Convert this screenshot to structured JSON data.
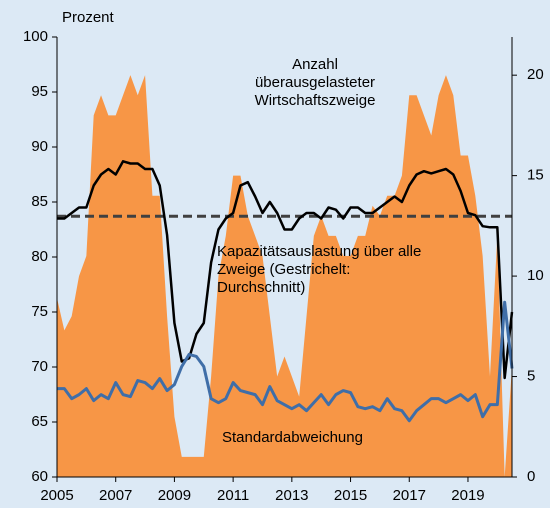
{
  "chart_data": {
    "type": "line",
    "y_label": "Prozent",
    "x": [
      2005,
      2005.25,
      2005.5,
      2005.75,
      2006,
      2006.25,
      2006.5,
      2006.75,
      2007,
      2007.25,
      2007.5,
      2007.75,
      2008,
      2008.25,
      2008.5,
      2008.75,
      2009,
      2009.25,
      2009.5,
      2009.75,
      2010,
      2010.25,
      2010.5,
      2010.75,
      2011,
      2011.25,
      2011.5,
      2011.75,
      2012,
      2012.25,
      2012.5,
      2012.75,
      2013,
      2013.25,
      2013.5,
      2013.75,
      2014,
      2014.25,
      2014.5,
      2014.75,
      2015,
      2015.25,
      2015.5,
      2015.75,
      2016,
      2016.25,
      2016.5,
      2016.75,
      2017,
      2017.25,
      2017.5,
      2017.75,
      2018,
      2018.25,
      2018.5,
      2018.75,
      2019,
      2019.25,
      2019.5,
      2019.75,
      2020,
      2020.25,
      2020.5
    ],
    "series": [
      {
        "name": "Anzahl überausgelasteter Wirtschaftszweige",
        "kind": "area",
        "axis": "y2",
        "color": "#f79646",
        "values": [
          8.9,
          7.3,
          8,
          10,
          11,
          18,
          19,
          18,
          18,
          19,
          20,
          19,
          20,
          14,
          14,
          8,
          3,
          1,
          1,
          1,
          1,
          5,
          10,
          12,
          15,
          15,
          13,
          12,
          11,
          8,
          5,
          6,
          5,
          4,
          8,
          12,
          13,
          12,
          12,
          11,
          11,
          12,
          12,
          13.5,
          13,
          14,
          14,
          15,
          19,
          19,
          18,
          17,
          19,
          20,
          19,
          16,
          16,
          14,
          11,
          5,
          12,
          0,
          5.5
        ]
      },
      {
        "name": "Kapazitätsauslastung über alle Zweige (Gestrichelt: Durchschnitt)",
        "kind": "line",
        "axis": "y",
        "color": "#000000",
        "values": [
          83.5,
          83.5,
          84,
          84.5,
          84.5,
          86.5,
          87.5,
          88,
          87.5,
          88.7,
          88.5,
          88.5,
          88,
          88,
          86.5,
          82,
          74,
          70.5,
          70.8,
          73,
          74,
          79.5,
          82.5,
          83.5,
          84,
          86.5,
          86.8,
          85.5,
          84,
          85,
          84,
          82.5,
          82.5,
          83.5,
          84,
          84,
          83.5,
          84.5,
          84.3,
          83.5,
          84.5,
          84.5,
          84,
          84,
          84.5,
          85,
          85.5,
          85,
          86.5,
          87.5,
          87.8,
          87.6,
          87.8,
          88,
          87.5,
          86,
          84,
          83.8,
          82.8,
          82.7,
          82.7,
          69,
          75
        ]
      },
      {
        "name": "Standardabweichung",
        "kind": "line",
        "axis": "y2",
        "color": "#3f6ea8",
        "values": [
          4.4,
          4.4,
          3.9,
          4.1,
          4.4,
          3.8,
          4.1,
          3.9,
          4.7,
          4.1,
          4.0,
          4.8,
          4.7,
          4.4,
          4.9,
          4.3,
          4.6,
          5.5,
          6.1,
          6.0,
          5.5,
          3.9,
          3.7,
          3.9,
          4.7,
          4.3,
          4.2,
          4.1,
          3.6,
          4.5,
          3.8,
          3.6,
          3.4,
          3.6,
          3.3,
          3.7,
          4.1,
          3.6,
          4.1,
          4.3,
          4.2,
          3.5,
          3.4,
          3.5,
          3.3,
          3.9,
          3.4,
          3.3,
          2.8,
          3.3,
          3.6,
          3.9,
          3.9,
          3.7,
          3.9,
          4.1,
          3.8,
          4.1,
          3.0,
          3.6,
          3.6,
          8.7,
          5.4
        ]
      }
    ],
    "average": {
      "value": 83.7,
      "color": "#404040"
    },
    "xlim": [
      2005,
      2020.5
    ],
    "xticks": [
      2005,
      2007,
      2009,
      2011,
      2013,
      2015,
      2017,
      2019
    ],
    "ylim": [
      60,
      100
    ],
    "yticks": [
      60,
      65,
      70,
      75,
      80,
      85,
      90,
      95,
      100
    ],
    "y2lim": [
      0,
      21.9
    ],
    "y2ticks": [
      0,
      5,
      10,
      15,
      20
    ],
    "background": "#dce9f5"
  }
}
